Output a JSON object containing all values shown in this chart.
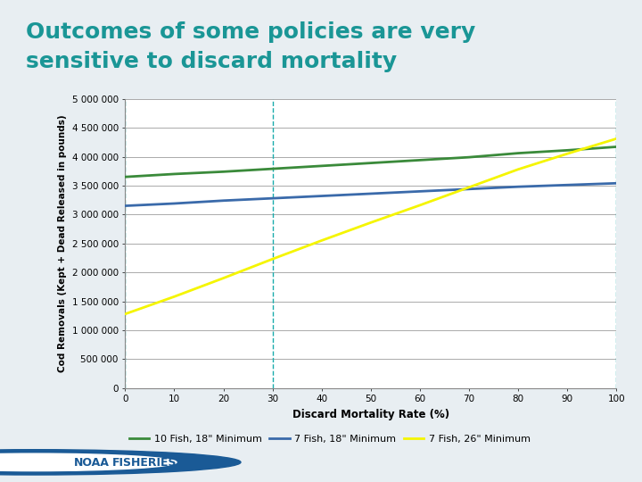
{
  "title_line1": "Outcomes of some policies are very",
  "title_line2": "sensitive to discard mortality",
  "title_color": "#1a9696",
  "background_color": "#e8eef2",
  "plot_bg_color": "#ffffff",
  "xlabel": "Discard Mortality Rate (%)",
  "ylabel": "Cod Removals (Kept + Dead Released in pounds)",
  "xlim": [
    0,
    100
  ],
  "ylim": [
    0,
    5000000
  ],
  "yticks": [
    0,
    500000,
    1000000,
    1500000,
    2000000,
    2500000,
    3000000,
    3500000,
    4000000,
    4500000,
    5000000
  ],
  "ytick_labels": [
    "0",
    "500 000",
    "1 000 000",
    "1 500 000",
    "2 000 000",
    "2 500 000",
    "3 000 000",
    "3 500 000",
    "4 000 000",
    "4 500 000",
    "5 000 000"
  ],
  "xticks": [
    0,
    10,
    20,
    30,
    40,
    50,
    60,
    70,
    80,
    90,
    100
  ],
  "vlines": [
    0,
    30,
    100
  ],
  "vline_color": "#1aacac",
  "grid_color": "#aaaaaa",
  "series": [
    {
      "label": "10 Fish, 18\" Minimum",
      "color": "#3a8a3a",
      "x": [
        0,
        10,
        20,
        30,
        40,
        50,
        60,
        70,
        80,
        90,
        100
      ],
      "y": [
        3650000,
        3700000,
        3740000,
        3790000,
        3840000,
        3890000,
        3940000,
        3990000,
        4060000,
        4110000,
        4170000
      ]
    },
    {
      "label": "7 Fish, 18\" Minimum",
      "color": "#3a6aaa",
      "x": [
        0,
        10,
        20,
        30,
        40,
        50,
        60,
        70,
        80,
        90,
        100
      ],
      "y": [
        3150000,
        3190000,
        3240000,
        3280000,
        3320000,
        3360000,
        3400000,
        3440000,
        3480000,
        3510000,
        3540000
      ]
    },
    {
      "label": "7 Fish, 26\" Minimum",
      "color": "#f5f500",
      "x": [
        0,
        10,
        20,
        30,
        40,
        50,
        60,
        70,
        80,
        90,
        100
      ],
      "y": [
        1280000,
        1580000,
        1900000,
        2230000,
        2550000,
        2860000,
        3160000,
        3470000,
        3780000,
        4050000,
        4310000
      ]
    }
  ],
  "legend_items": [
    {
      "label": "10 Fish, 18\" Minimum",
      "color": "#3a8a3a"
    },
    {
      "label": "7 Fish, 18\" Minimum",
      "color": "#3a6aaa"
    },
    {
      "label": "7 Fish, 26\" Minimum",
      "color": "#f5f500"
    }
  ],
  "noaa_footer_color": "#c5d9e0",
  "top_bar_color": "#1a4a7a",
  "top_bar_height": 0.012
}
